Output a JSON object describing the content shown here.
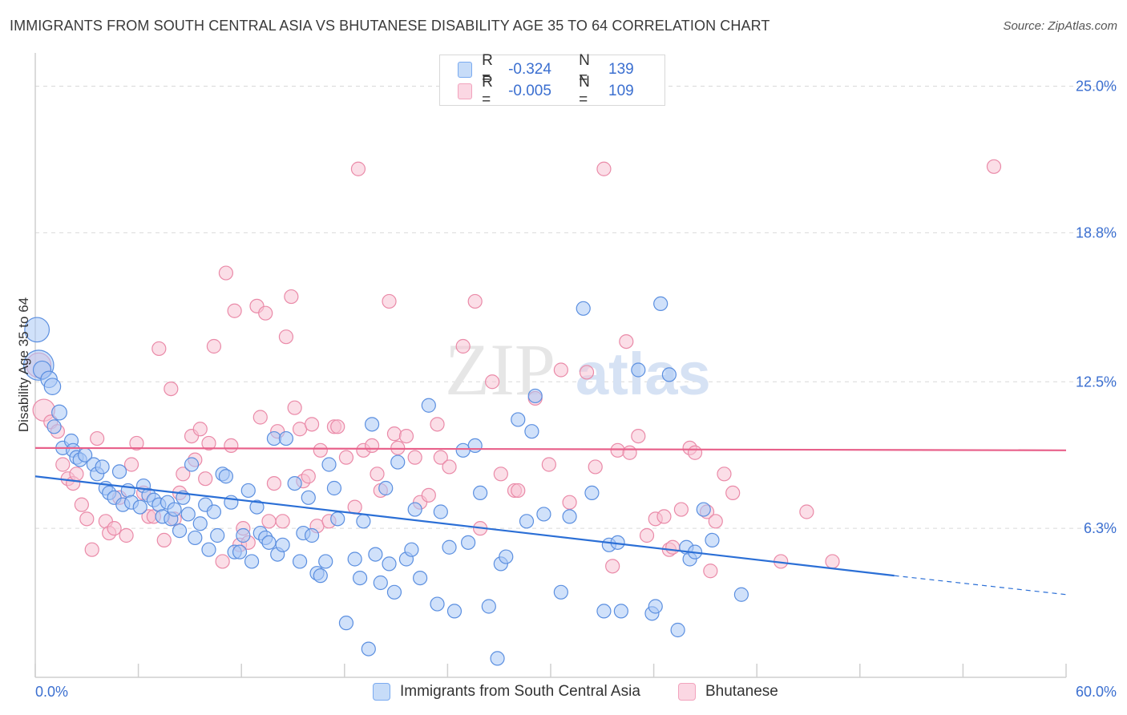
{
  "title": "IMMIGRANTS FROM SOUTH CENTRAL ASIA VS BHUTANESE DISABILITY AGE 35 TO 64 CORRELATION CHART",
  "source": "Source: ZipAtlas.com",
  "watermark": {
    "zip": "ZIP",
    "atlas": "atlas"
  },
  "legend": {
    "rows": [
      {
        "r_label": "R =",
        "r_value": "-0.324",
        "n_label": "N =",
        "n_value": "139",
        "color": "#7aaaf0"
      },
      {
        "r_label": "R =",
        "r_value": "-0.005",
        "n_label": "N =",
        "n_value": "109",
        "color": "#f2a3bd"
      }
    ]
  },
  "colors": {
    "blue_fill": "#a9c8f5",
    "blue_stroke": "#5b8fe0",
    "blue_line": "#2b6fd6",
    "pink_fill": "#f8c3d3",
    "pink_stroke": "#ea8aa8",
    "pink_line": "#e8608a",
    "grid": "#d9d9d9",
    "axis_text": "#3b6fd0"
  },
  "chart_data": {
    "type": "scatter",
    "title": "IMMIGRANTS FROM SOUTH CENTRAL ASIA VS BHUTANESE DISABILITY AGE 35 TO 64 CORRELATION CHART",
    "xlabel": "",
    "ylabel": "Disability Age 35 to 64",
    "xlim": [
      0,
      60
    ],
    "ylim": [
      0,
      26
    ],
    "x_tick_labels": [
      "0.0%",
      "60.0%"
    ],
    "y_ticks": [
      6.3,
      12.5,
      18.8,
      25.0
    ],
    "y_tick_labels": [
      "6.3%",
      "12.5%",
      "18.8%",
      "25.0%"
    ],
    "series": [
      {
        "name": "Immigrants from South Central Asia",
        "color": "#7aaaf0",
        "trend": {
          "x0": 0,
          "y0": 8.5,
          "x1": 50.0,
          "y1": 4.3,
          "dashed_to_x": 60,
          "dashed_to_y": 3.5
        },
        "points": [
          [
            0.1,
            14.7,
            1.8
          ],
          [
            0.2,
            13.2,
            2.2
          ],
          [
            0.4,
            13.0,
            1.3
          ],
          [
            0.8,
            12.6,
            1.2
          ],
          [
            1.0,
            12.3,
            1.2
          ],
          [
            1.4,
            11.2,
            1.1
          ],
          [
            1.1,
            10.6,
            1.0
          ],
          [
            1.6,
            9.7,
            1.0
          ],
          [
            2.1,
            10.0,
            1.0
          ],
          [
            2.2,
            9.6,
            1.0
          ],
          [
            2.4,
            9.3,
            1.0
          ],
          [
            2.6,
            9.2,
            1.0
          ],
          [
            2.9,
            9.4,
            1.0
          ],
          [
            3.4,
            9.0,
            1.0
          ],
          [
            3.6,
            8.6,
            1.0
          ],
          [
            3.9,
            8.9,
            1.0
          ],
          [
            4.1,
            8.0,
            1.0
          ],
          [
            4.3,
            7.8,
            1.0
          ],
          [
            4.6,
            7.6,
            1.0
          ],
          [
            4.9,
            8.7,
            1.0
          ],
          [
            5.1,
            7.3,
            1.0
          ],
          [
            5.4,
            7.9,
            1.0
          ],
          [
            5.6,
            7.4,
            1.0
          ],
          [
            6.1,
            7.2,
            1.0
          ],
          [
            6.3,
            8.1,
            1.0
          ],
          [
            6.6,
            7.7,
            1.0
          ],
          [
            6.9,
            7.5,
            1.0
          ],
          [
            7.2,
            7.3,
            1.0
          ],
          [
            7.4,
            6.8,
            1.0
          ],
          [
            7.7,
            7.4,
            1.0
          ],
          [
            7.9,
            6.7,
            1.0
          ],
          [
            8.1,
            7.1,
            1.0
          ],
          [
            8.4,
            6.2,
            1.0
          ],
          [
            8.6,
            7.6,
            1.0
          ],
          [
            8.9,
            6.9,
            1.0
          ],
          [
            9.1,
            9.0,
            1.0
          ],
          [
            9.3,
            5.9,
            1.0
          ],
          [
            9.6,
            6.5,
            1.0
          ],
          [
            9.9,
            7.3,
            1.0
          ],
          [
            10.1,
            5.4,
            1.0
          ],
          [
            10.4,
            7.0,
            1.0
          ],
          [
            10.6,
            6.0,
            1.0
          ],
          [
            10.9,
            8.6,
            1.0
          ],
          [
            11.1,
            8.5,
            1.0
          ],
          [
            11.4,
            7.4,
            1.0
          ],
          [
            11.6,
            5.3,
            1.0
          ],
          [
            11.9,
            5.3,
            1.0
          ],
          [
            12.1,
            6.0,
            1.0
          ],
          [
            12.4,
            7.9,
            1.0
          ],
          [
            12.6,
            4.9,
            1.0
          ],
          [
            12.9,
            7.2,
            1.0
          ],
          [
            13.1,
            6.1,
            1.0
          ],
          [
            13.4,
            5.9,
            1.0
          ],
          [
            13.6,
            5.7,
            1.0
          ],
          [
            13.9,
            10.1,
            1.0
          ],
          [
            14.1,
            5.2,
            1.0
          ],
          [
            14.4,
            5.6,
            1.0
          ],
          [
            14.6,
            10.1,
            1.0
          ],
          [
            15.1,
            8.2,
            1.0
          ],
          [
            15.4,
            4.9,
            1.0
          ],
          [
            15.6,
            6.1,
            1.0
          ],
          [
            15.9,
            7.6,
            1.0
          ],
          [
            16.1,
            6.0,
            1.0
          ],
          [
            16.4,
            4.4,
            1.0
          ],
          [
            16.6,
            4.3,
            1.0
          ],
          [
            16.9,
            4.9,
            1.0
          ],
          [
            17.1,
            9.0,
            1.0
          ],
          [
            17.4,
            8.0,
            1.0
          ],
          [
            17.6,
            6.7,
            1.0
          ],
          [
            18.1,
            2.3,
            1.0
          ],
          [
            18.6,
            5.0,
            1.0
          ],
          [
            18.9,
            4.2,
            1.0
          ],
          [
            19.1,
            6.6,
            1.0
          ],
          [
            19.4,
            1.2,
            1.0
          ],
          [
            19.6,
            10.7,
            1.0
          ],
          [
            19.8,
            5.2,
            1.0
          ],
          [
            20.1,
            4.0,
            1.0
          ],
          [
            20.4,
            8.0,
            1.0
          ],
          [
            20.6,
            4.8,
            1.0
          ],
          [
            20.9,
            3.6,
            1.0
          ],
          [
            21.1,
            9.1,
            1.0
          ],
          [
            21.6,
            5.0,
            1.0
          ],
          [
            21.9,
            5.4,
            1.0
          ],
          [
            22.1,
            7.1,
            1.0
          ],
          [
            22.4,
            4.2,
            1.0
          ],
          [
            22.9,
            11.5,
            1.0
          ],
          [
            23.4,
            3.1,
            1.0
          ],
          [
            23.6,
            7.0,
            1.0
          ],
          [
            24.1,
            5.5,
            1.0
          ],
          [
            24.4,
            2.8,
            1.0
          ],
          [
            24.9,
            9.6,
            1.0
          ],
          [
            25.2,
            5.7,
            1.0
          ],
          [
            25.6,
            9.8,
            1.0
          ],
          [
            25.9,
            7.8,
            1.0
          ],
          [
            26.4,
            3.0,
            1.0
          ],
          [
            26.9,
            0.8,
            1.0
          ],
          [
            27.1,
            4.8,
            1.0
          ],
          [
            27.4,
            5.1,
            1.0
          ],
          [
            28.1,
            10.9,
            1.0
          ],
          [
            28.6,
            6.6,
            1.0
          ],
          [
            28.9,
            10.4,
            1.0
          ],
          [
            29.1,
            11.9,
            1.0
          ],
          [
            29.6,
            6.9,
            1.0
          ],
          [
            30.6,
            3.6,
            1.0
          ],
          [
            31.1,
            6.8,
            1.0
          ],
          [
            31.9,
            15.6,
            1.0
          ],
          [
            32.4,
            7.8,
            1.0
          ],
          [
            33.1,
            2.8,
            1.0
          ],
          [
            33.4,
            5.6,
            1.0
          ],
          [
            33.9,
            5.7,
            1.0
          ],
          [
            34.1,
            2.8,
            1.0
          ],
          [
            35.1,
            13.0,
            1.0
          ],
          [
            35.9,
            2.7,
            1.0
          ],
          [
            36.1,
            3.0,
            1.0
          ],
          [
            36.4,
            15.8,
            1.0
          ],
          [
            36.9,
            12.8,
            1.0
          ],
          [
            37.4,
            2.0,
            1.0
          ],
          [
            37.9,
            5.5,
            1.0
          ],
          [
            38.1,
            5.0,
            1.0
          ],
          [
            38.4,
            5.3,
            1.0
          ],
          [
            38.9,
            7.1,
            1.0
          ],
          [
            39.4,
            5.8,
            1.0
          ],
          [
            41.1,
            3.5,
            1.0
          ]
        ]
      },
      {
        "name": "Bhutanese",
        "color": "#f2a3bd",
        "trend": {
          "x0": 0,
          "y0": 9.7,
          "x1": 60,
          "y1": 9.6
        },
        "points": [
          [
            0.2,
            13.2,
            1.8
          ],
          [
            0.5,
            11.3,
            1.6
          ],
          [
            0.9,
            10.8,
            1.0
          ],
          [
            1.3,
            10.4,
            1.0
          ],
          [
            1.6,
            9.0,
            1.0
          ],
          [
            1.9,
            8.4,
            1.0
          ],
          [
            2.2,
            8.2,
            1.0
          ],
          [
            2.4,
            8.6,
            1.0
          ],
          [
            2.7,
            7.3,
            1.0
          ],
          [
            3.0,
            6.7,
            1.0
          ],
          [
            3.3,
            5.4,
            1.0
          ],
          [
            3.6,
            10.1,
            1.0
          ],
          [
            4.1,
            6.6,
            1.0
          ],
          [
            4.3,
            6.1,
            1.0
          ],
          [
            4.6,
            6.3,
            1.0
          ],
          [
            4.9,
            7.6,
            1.0
          ],
          [
            5.3,
            6.0,
            1.0
          ],
          [
            5.6,
            9.0,
            1.0
          ],
          [
            5.9,
            9.9,
            1.0
          ],
          [
            6.3,
            7.8,
            1.0
          ],
          [
            6.6,
            6.8,
            1.0
          ],
          [
            6.9,
            6.8,
            1.0
          ],
          [
            7.2,
            13.9,
            1.0
          ],
          [
            7.5,
            5.8,
            1.0
          ],
          [
            7.9,
            12.2,
            1.0
          ],
          [
            8.1,
            6.7,
            1.0
          ],
          [
            8.4,
            7.8,
            1.0
          ],
          [
            8.6,
            8.6,
            1.0
          ],
          [
            9.1,
            10.2,
            1.0
          ],
          [
            9.3,
            9.2,
            1.0
          ],
          [
            9.6,
            10.5,
            1.0
          ],
          [
            9.9,
            8.4,
            1.0
          ],
          [
            10.1,
            9.9,
            1.0
          ],
          [
            10.4,
            14.0,
            1.0
          ],
          [
            10.9,
            4.9,
            1.0
          ],
          [
            11.1,
            17.1,
            1.0
          ],
          [
            11.4,
            9.8,
            1.0
          ],
          [
            11.6,
            15.5,
            1.0
          ],
          [
            11.9,
            5.6,
            1.0
          ],
          [
            12.1,
            6.3,
            1.0
          ],
          [
            12.4,
            5.7,
            1.0
          ],
          [
            12.9,
            15.7,
            1.0
          ],
          [
            13.1,
            11.0,
            1.0
          ],
          [
            13.4,
            15.4,
            1.0
          ],
          [
            13.6,
            6.6,
            1.0
          ],
          [
            13.9,
            8.2,
            1.0
          ],
          [
            14.1,
            10.4,
            1.0
          ],
          [
            14.4,
            6.6,
            1.0
          ],
          [
            14.6,
            14.4,
            1.0
          ],
          [
            14.9,
            16.1,
            1.0
          ],
          [
            15.1,
            11.4,
            1.0
          ],
          [
            15.4,
            10.5,
            1.0
          ],
          [
            15.6,
            8.3,
            1.0
          ],
          [
            15.9,
            8.5,
            1.0
          ],
          [
            16.1,
            10.7,
            1.0
          ],
          [
            16.4,
            6.4,
            1.0
          ],
          [
            16.6,
            9.6,
            1.0
          ],
          [
            17.1,
            6.6,
            1.0
          ],
          [
            17.4,
            10.6,
            1.0
          ],
          [
            17.6,
            10.6,
            1.0
          ],
          [
            18.1,
            9.3,
            1.0
          ],
          [
            18.6,
            7.2,
            1.0
          ],
          [
            18.8,
            21.5,
            1.0
          ],
          [
            19.1,
            9.6,
            1.0
          ],
          [
            19.6,
            9.8,
            1.0
          ],
          [
            19.9,
            8.6,
            1.0
          ],
          [
            20.1,
            7.9,
            1.0
          ],
          [
            20.6,
            15.9,
            1.0
          ],
          [
            20.9,
            10.3,
            1.0
          ],
          [
            21.1,
            9.7,
            1.0
          ],
          [
            21.6,
            10.2,
            1.0
          ],
          [
            22.1,
            9.3,
            1.0
          ],
          [
            22.4,
            7.4,
            1.0
          ],
          [
            22.9,
            7.7,
            1.0
          ],
          [
            23.4,
            10.7,
            1.0
          ],
          [
            23.6,
            9.3,
            1.0
          ],
          [
            24.1,
            8.9,
            1.0
          ],
          [
            24.9,
            14.0,
            1.0
          ],
          [
            25.6,
            15.9,
            1.0
          ],
          [
            25.9,
            6.3,
            1.0
          ],
          [
            26.6,
            12.5,
            1.0
          ],
          [
            27.1,
            8.6,
            1.0
          ],
          [
            27.9,
            7.9,
            1.0
          ],
          [
            28.1,
            7.9,
            1.0
          ],
          [
            29.1,
            11.8,
            1.0
          ],
          [
            29.9,
            9.0,
            1.0
          ],
          [
            30.6,
            13.0,
            1.0
          ],
          [
            31.1,
            7.4,
            1.0
          ],
          [
            32.1,
            12.9,
            1.0
          ],
          [
            32.6,
            8.9,
            1.0
          ],
          [
            33.1,
            21.5,
            1.0
          ],
          [
            33.6,
            4.7,
            1.0
          ],
          [
            33.9,
            9.6,
            1.0
          ],
          [
            34.4,
            14.2,
            1.0
          ],
          [
            34.6,
            9.5,
            1.0
          ],
          [
            35.1,
            10.2,
            1.0
          ],
          [
            35.6,
            6.0,
            1.0
          ],
          [
            36.1,
            6.7,
            1.0
          ],
          [
            36.6,
            6.8,
            1.0
          ],
          [
            36.9,
            5.4,
            1.0
          ],
          [
            37.1,
            5.5,
            1.0
          ],
          [
            37.6,
            7.1,
            1.0
          ],
          [
            38.1,
            9.7,
            1.0
          ],
          [
            38.4,
            9.5,
            1.0
          ],
          [
            39.1,
            7.0,
            1.0
          ],
          [
            39.3,
            4.5,
            1.0
          ],
          [
            39.6,
            6.6,
            1.0
          ],
          [
            40.1,
            8.6,
            1.0
          ],
          [
            40.6,
            7.8,
            1.0
          ],
          [
            43.4,
            4.9,
            1.0
          ],
          [
            44.9,
            7.0,
            1.0
          ],
          [
            46.4,
            4.9,
            1.0
          ],
          [
            55.8,
            21.6,
            1.0
          ]
        ]
      }
    ]
  },
  "bottom_legend": [
    {
      "label": "Immigrants from South Central Asia",
      "color": "#7aaaf0"
    },
    {
      "label": "Bhutanese",
      "color": "#f2a3bd"
    }
  ]
}
